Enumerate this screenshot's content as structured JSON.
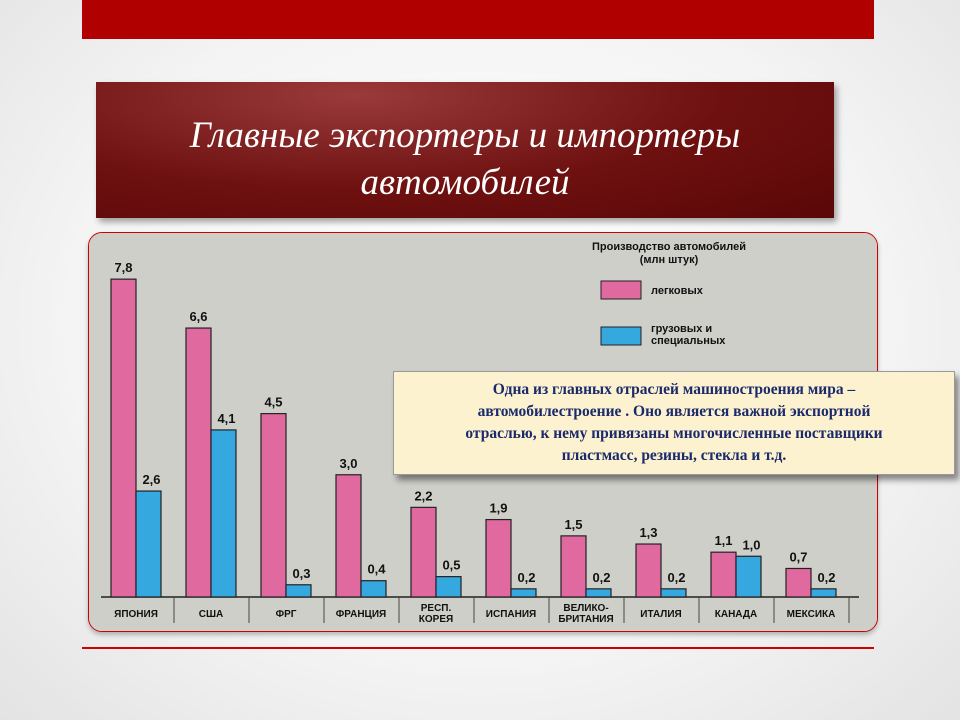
{
  "slide": {
    "title": "Главные экспортеры и импортеры\nавтомобилей",
    "callout": "Одна из главных отраслей машиностроения  мира –\nавтомобилестроение . Оно  является важной  экспортной\nотраслью,  к нему  привязаны  многочисленные  поставщики\nпластмасс, резины, стекла и т.д."
  },
  "chart_data": {
    "type": "bar",
    "title": "Производство автомобилей",
    "subtitle": "(млн штук)",
    "categories": [
      "ЯПОНИЯ",
      "США",
      "ФРГ",
      "ФРАНЦИЯ",
      "РЕСП.\nКОРЕЯ",
      "ИСПАНИЯ",
      "ВЕЛИКО-\nБРИТАНИЯ",
      "ИТАЛИЯ",
      "КАНАДА",
      "МЕКСИКА"
    ],
    "series": [
      {
        "name": "легковых",
        "values": [
          7.8,
          6.6,
          4.5,
          3.0,
          2.2,
          1.9,
          1.5,
          1.3,
          1.1,
          0.7
        ]
      },
      {
        "name": "грузовых и\nспециальных",
        "values": [
          2.6,
          4.1,
          0.3,
          0.4,
          0.5,
          0.2,
          0.2,
          0.2,
          1.0,
          0.2
        ]
      }
    ],
    "value_labels": [
      [
        "7,8",
        "6,6",
        "4,5",
        "3,0",
        "2,2",
        "1,9",
        "1,5",
        "1,3",
        "1,1",
        "0,7"
      ],
      [
        "2,6",
        "4,1",
        "0,3",
        "0,4",
        "0,5",
        "0,2",
        "0,2",
        "0,2",
        "1,0",
        "0,2"
      ]
    ],
    "colors": {
      "passenger": "#e06aa0",
      "trucks": "#35a8e0",
      "background": "#cfcfca"
    },
    "ylim": [
      0,
      8
    ],
    "legend_position": "top-right",
    "grid": false
  }
}
